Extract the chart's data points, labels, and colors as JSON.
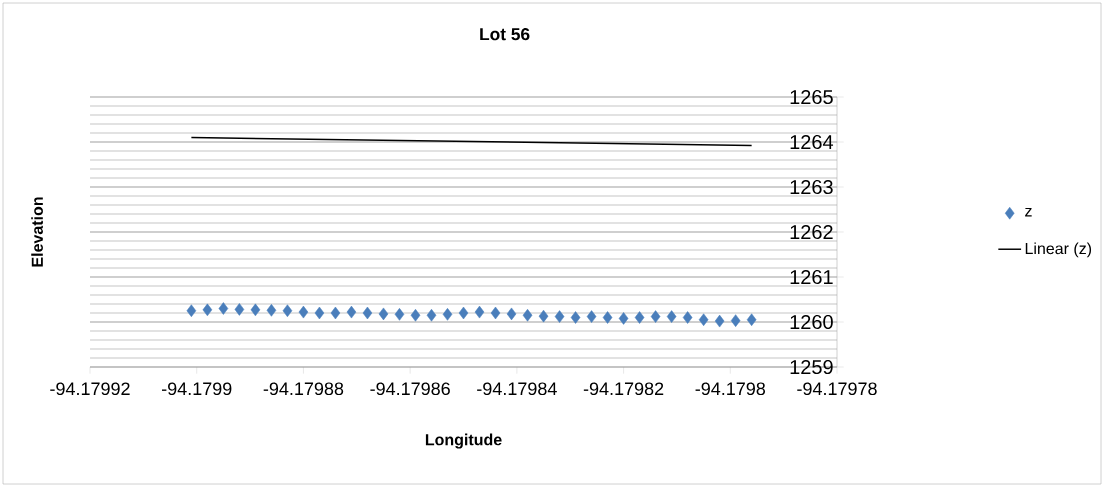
{
  "chart_data": {
    "type": "scatter",
    "title": "Lot 56",
    "xlabel": "Longitude",
    "ylabel": "Elevation",
    "series": [
      {
        "name": "z",
        "color": "#4a7ebb",
        "marker": "diamond",
        "x": [
          -94.179901,
          -94.179898,
          -94.179895,
          -94.179892,
          -94.179889,
          -94.179886,
          -94.179883,
          -94.17988,
          -94.179877,
          -94.179874,
          -94.179871,
          -94.179868,
          -94.179865,
          -94.179862,
          -94.179859,
          -94.179856,
          -94.179853,
          -94.17985,
          -94.179847,
          -94.179844,
          -94.179841,
          -94.179838,
          -94.179835,
          -94.179832,
          -94.179829,
          -94.179826,
          -94.179823,
          -94.17982,
          -94.179817,
          -94.179814,
          -94.179811,
          -94.179808,
          -94.179805,
          -94.179802,
          -94.179799,
          -94.179796
        ],
        "values": [
          1260.25,
          1260.27,
          1260.3,
          1260.28,
          1260.27,
          1260.26,
          1260.25,
          1260.22,
          1260.2,
          1260.2,
          1260.22,
          1260.2,
          1260.18,
          1260.17,
          1260.15,
          1260.15,
          1260.17,
          1260.2,
          1260.22,
          1260.2,
          1260.18,
          1260.15,
          1260.13,
          1260.12,
          1260.1,
          1260.12,
          1260.1,
          1260.08,
          1260.1,
          1260.12,
          1260.12,
          1260.1,
          1260.05,
          1260.02,
          1260.03,
          1260.05
        ]
      },
      {
        "name": "Linear (z)",
        "type": "line",
        "color": "#000000",
        "marker": "none",
        "line_style": "solid",
        "x": [
          -94.179901,
          -94.179796
        ],
        "values": [
          1264.1,
          1263.92
        ]
      }
    ],
    "xlim": [
      -94.17992,
      -94.17978
    ],
    "xticks": [
      -94.17992,
      -94.1799,
      -94.17988,
      -94.17986,
      -94.17984,
      -94.17982,
      -94.1798,
      -94.17978
    ],
    "ylim": [
      1259,
      1265
    ],
    "yticks": [
      1259,
      1260,
      1261,
      1262,
      1263,
      1264,
      1265
    ],
    "grid": "y",
    "legend": "right"
  }
}
